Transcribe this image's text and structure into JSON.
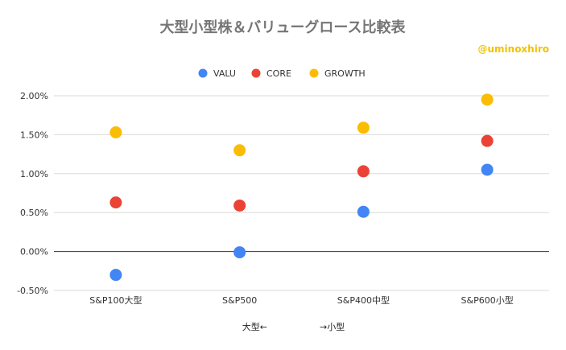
{
  "chart_data": {
    "type": "scatter",
    "title": "大型小型株＆バリューグロース比較表",
    "annotation": "@uminoxhiro",
    "categories": [
      "S&P100大型",
      "S&P500",
      "S&P400中型",
      "S&P600小型"
    ],
    "series": [
      {
        "name": "VALU",
        "color": "#4285f4",
        "values": [
          -0.3,
          -0.01,
          0.51,
          1.05
        ]
      },
      {
        "name": "CORE",
        "color": "#ea4335",
        "values": [
          0.63,
          0.59,
          1.03,
          1.42
        ]
      },
      {
        "name": "GROWTH",
        "color": "#fbbc04",
        "values": [
          1.53,
          1.3,
          1.59,
          1.95
        ]
      }
    ],
    "ylim": [
      -0.5,
      2.0
    ],
    "yticks": [
      "-0.50%",
      "0.00%",
      "0.50%",
      "1.00%",
      "1.50%",
      "2.00%"
    ],
    "ytick_values": [
      -0.5,
      0,
      0.5,
      1.0,
      1.5,
      2.0
    ],
    "xlabel_left": "大型←",
    "xlabel_right": "→小型",
    "legend_position": "top",
    "grid": true
  }
}
